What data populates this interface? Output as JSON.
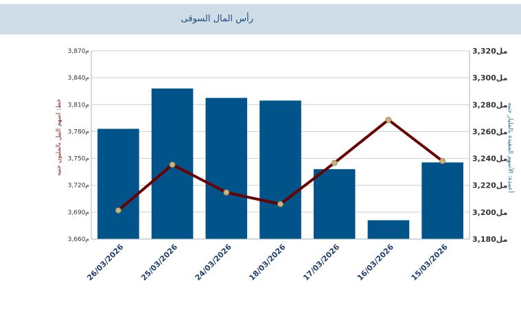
{
  "header": {
    "title": "رأس المال السوقى"
  },
  "chart_data": {
    "type": "bar",
    "categories": [
      "26/03/2026",
      "25/03/2026",
      "24/03/2026",
      "18/03/2026",
      "17/03/2026",
      "16/03/2026",
      "15/03/2026"
    ],
    "grid": true,
    "y_left": {
      "label": "خط: اسهم النيل بالمليون جنيه",
      "ticks": [
        "3,660م",
        "3,690م",
        "3,720م",
        "3,750م",
        "3,780م",
        "3,810م",
        "3,840م",
        "3,870م"
      ],
      "ylim": [
        3660,
        3870
      ]
    },
    "y_right": {
      "label": "أعمدة: الأسهم المقيدة بالمليار جنيه",
      "ticks": [
        "مل3,180",
        "مل3,200",
        "مل3,220",
        "مل3,240",
        "مل3,260",
        "مل3,280",
        "مل3,300",
        "مل3,320"
      ],
      "ylim": [
        3180,
        3320
      ]
    },
    "series": [
      {
        "type": "bar",
        "axis": "right",
        "color": "#00548a",
        "values": [
          3262,
          3292,
          3285,
          3283,
          3232,
          3194,
          3237
        ]
      },
      {
        "type": "line",
        "axis": "left",
        "color": "#6b0000",
        "marker_color": "#c8b47a",
        "values": [
          3692,
          3743,
          3712,
          3699,
          3745,
          3793,
          3747
        ]
      }
    ]
  }
}
